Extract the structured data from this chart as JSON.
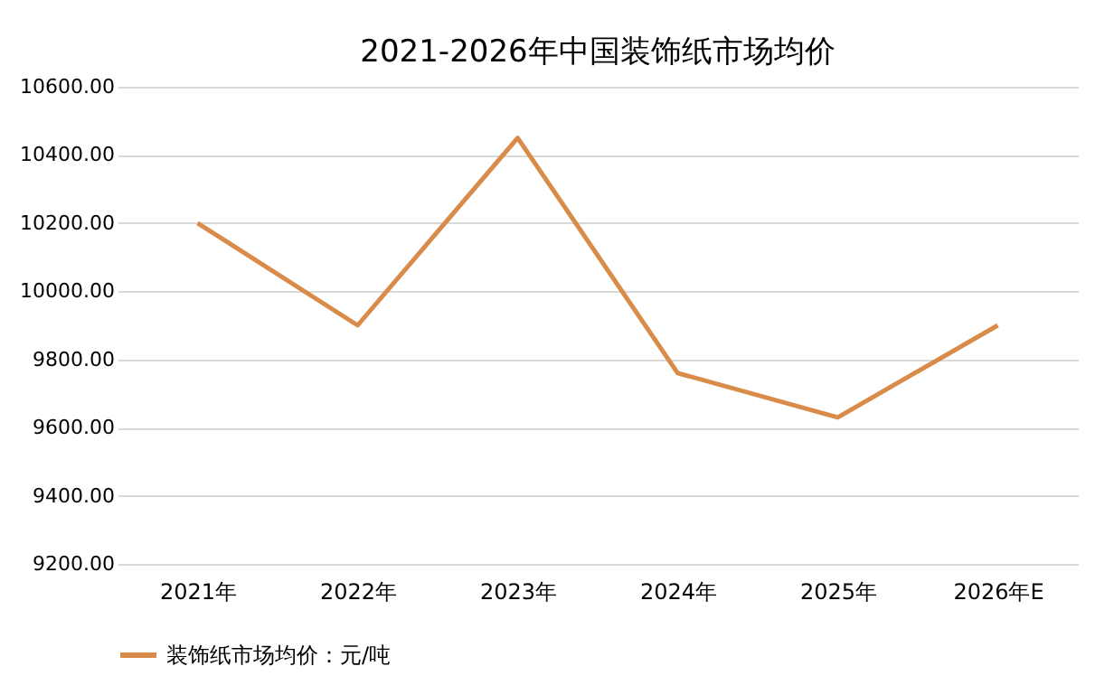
{
  "chart_data": {
    "type": "line",
    "title": "2021-2026年中国装饰纸市场均价",
    "categories": [
      "2021年",
      "2022年",
      "2023年",
      "2024年",
      "2025年",
      "2026年E"
    ],
    "series": [
      {
        "name": "装饰纸市场均价：元/吨",
        "color": "#d98b4a",
        "values": [
          10200,
          9900,
          10450,
          9760,
          9630,
          9900
        ]
      }
    ],
    "ylim": [
      9200,
      10600
    ],
    "yticks": [
      {
        "value": 9200,
        "label": "9200.00"
      },
      {
        "value": 9400,
        "label": "9400.00"
      },
      {
        "value": 9600,
        "label": "9600.00"
      },
      {
        "value": 9800,
        "label": "9800.00"
      },
      {
        "value": 10000,
        "label": "10000.00"
      },
      {
        "value": 10200,
        "label": "10200.00"
      },
      {
        "value": 10400,
        "label": "10400.00"
      },
      {
        "value": 10600,
        "label": "10600.00"
      }
    ],
    "grid": "y",
    "legend": "bottom",
    "marker": "none",
    "line_style": "solid"
  }
}
